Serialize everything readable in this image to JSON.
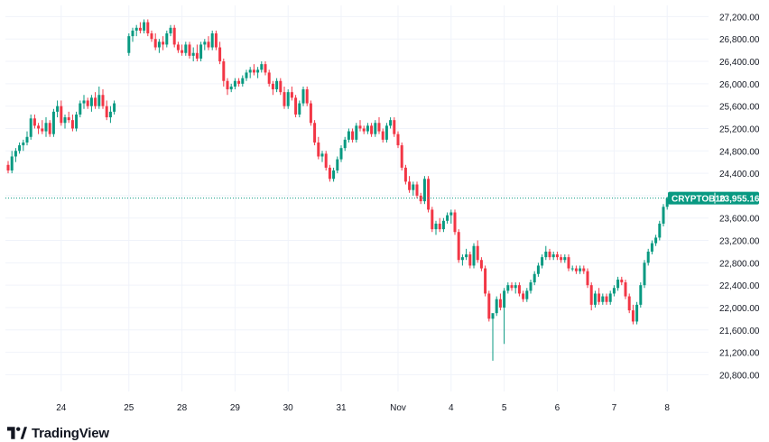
{
  "brand": {
    "name": "TradingView"
  },
  "colors": {
    "up": "#089981",
    "down": "#f23645",
    "grid": "#f0f3fa",
    "axis_text": "#131722",
    "last_line": "#089981",
    "tag_bg": "#089981"
  },
  "chart_data": {
    "type": "candlestick",
    "symbol": "CRYPTOB10",
    "last_price": 23955.16,
    "last_price_label": "23,955.16",
    "y_range": [
      20500,
      27400
    ],
    "y_ticks": [
      20800,
      21200,
      21600,
      22000,
      22400,
      22800,
      23200,
      23600,
      24000,
      24400,
      24800,
      25200,
      25600,
      26000,
      26400,
      26800,
      27200
    ],
    "y_tick_labels": [
      "20,800.00",
      "21,200.00",
      "21,600.00",
      "22,000.00",
      "22,400.00",
      "22,800.00",
      "23,200.00",
      "23,600.00",
      "24,000.00",
      "24,400.00",
      "24,800.00",
      "25,200.00",
      "25,600.00",
      "26,000.00",
      "26,400.00",
      "26,800.00",
      "27,200.00"
    ],
    "x_ticks": [
      "24",
      "25",
      "28",
      "29",
      "30",
      "31",
      "Nov",
      "4",
      "5",
      "6",
      "7",
      "8"
    ],
    "grid": true,
    "series": [
      {
        "values": [
          [
            24550,
            24620,
            24400,
            24450
          ],
          [
            24450,
            24800,
            24400,
            24700
          ],
          [
            24700,
            24850,
            24600,
            24800
          ],
          [
            24800,
            24950,
            24750,
            24900
          ],
          [
            24900,
            25000,
            24800,
            24950
          ],
          [
            24950,
            25150,
            24900,
            25050
          ],
          [
            25050,
            25450,
            25000,
            25380
          ],
          [
            25380,
            25450,
            25200,
            25250
          ],
          [
            25250,
            25300,
            25100,
            25200
          ],
          [
            25200,
            25350,
            25100,
            25150
          ],
          [
            25150,
            25400,
            25050,
            25300
          ],
          [
            25300,
            25350,
            25050,
            25100
          ],
          [
            25100,
            25550,
            25050,
            25500
          ],
          [
            25500,
            25700,
            25400,
            25600
          ],
          [
            25600,
            25700,
            25250,
            25300
          ],
          [
            25300,
            25450,
            25200,
            25400
          ],
          [
            25400,
            25500,
            25300,
            25350
          ],
          [
            25350,
            25450,
            25150,
            25200
          ],
          [
            25200,
            25500,
            25150,
            25450
          ],
          [
            25450,
            25700,
            25400,
            25650
          ],
          [
            25650,
            25800,
            25550,
            25700
          ],
          [
            25700,
            25750,
            25550,
            25600
          ],
          [
            25600,
            25800,
            25500,
            25750
          ],
          [
            25750,
            25850,
            25550,
            25600
          ],
          [
            25600,
            25950,
            25550,
            25800
          ],
          [
            25800,
            25900,
            25550,
            25600
          ],
          [
            25600,
            25700,
            25350,
            25400
          ],
          [
            25400,
            25600,
            25300,
            25500
          ],
          [
            25500,
            25700,
            25450,
            25650
          ],
          [
            26550,
            26900,
            26500,
            26850
          ],
          [
            26850,
            27000,
            26750,
            26950
          ],
          [
            26950,
            27050,
            26850,
            27000
          ],
          [
            27000,
            27100,
            26900,
            26950
          ],
          [
            26950,
            27150,
            26900,
            27100
          ],
          [
            27100,
            27150,
            26850,
            26900
          ],
          [
            26900,
            26950,
            26750,
            26800
          ],
          [
            26800,
            26900,
            26600,
            26650
          ],
          [
            26650,
            26800,
            26550,
            26750
          ],
          [
            26750,
            26850,
            26600,
            26700
          ],
          [
            26700,
            26950,
            26650,
            26900
          ],
          [
            26900,
            27050,
            26850,
            27000
          ],
          [
            27000,
            27050,
            26650,
            26700
          ],
          [
            26700,
            26750,
            26550,
            26600
          ],
          [
            26600,
            26700,
            26500,
            26550
          ],
          [
            26550,
            26750,
            26500,
            26700
          ],
          [
            26700,
            26750,
            26450,
            26500
          ],
          [
            26500,
            26650,
            26400,
            26550
          ],
          [
            26550,
            26700,
            26400,
            26450
          ],
          [
            26450,
            26750,
            26400,
            26700
          ],
          [
            26700,
            26800,
            26600,
            26750
          ],
          [
            26750,
            26850,
            26600,
            26650
          ],
          [
            26650,
            26950,
            26600,
            26900
          ],
          [
            26900,
            26950,
            26600,
            26650
          ],
          [
            26650,
            26750,
            26350,
            26400
          ],
          [
            26400,
            26450,
            25950,
            26050
          ],
          [
            26050,
            26100,
            25800,
            25900
          ],
          [
            25900,
            26000,
            25850,
            25950
          ],
          [
            25950,
            26100,
            25900,
            26050
          ],
          [
            26050,
            26100,
            25950,
            26000
          ],
          [
            26000,
            26150,
            25950,
            26100
          ],
          [
            26100,
            26250,
            26050,
            26200
          ],
          [
            26200,
            26300,
            26100,
            26250
          ],
          [
            26250,
            26350,
            26150,
            26200
          ],
          [
            26200,
            26300,
            26100,
            26250
          ],
          [
            26250,
            26400,
            26200,
            26350
          ],
          [
            26350,
            26400,
            26150,
            26200
          ],
          [
            26200,
            26250,
            25950,
            26000
          ],
          [
            26000,
            26050,
            25800,
            25900
          ],
          [
            25900,
            26100,
            25850,
            26050
          ],
          [
            26050,
            26100,
            25800,
            25850
          ],
          [
            25850,
            25950,
            25550,
            25600
          ],
          [
            25600,
            25900,
            25550,
            25850
          ],
          [
            25850,
            25950,
            25700,
            25750
          ],
          [
            25750,
            25800,
            25400,
            25450
          ],
          [
            25450,
            25700,
            25400,
            25650
          ],
          [
            25650,
            25950,
            25600,
            25900
          ],
          [
            25900,
            25950,
            25600,
            25650
          ],
          [
            25650,
            25700,
            25250,
            25300
          ],
          [
            25300,
            25350,
            24900,
            24950
          ],
          [
            24950,
            25050,
            24650,
            24700
          ],
          [
            24700,
            24800,
            24600,
            24750
          ],
          [
            24750,
            24800,
            24450,
            24500
          ],
          [
            24500,
            24550,
            24250,
            24300
          ],
          [
            24300,
            24500,
            24250,
            24450
          ],
          [
            24450,
            24700,
            24400,
            24650
          ],
          [
            24650,
            24900,
            24600,
            24850
          ],
          [
            24850,
            25050,
            24800,
            25000
          ],
          [
            25000,
            25200,
            24950,
            25150
          ],
          [
            25150,
            25200,
            24950,
            25000
          ],
          [
            25000,
            25300,
            24950,
            25250
          ],
          [
            25250,
            25350,
            25150,
            25200
          ],
          [
            25200,
            25250,
            25100,
            25150
          ],
          [
            25150,
            25300,
            25100,
            25250
          ],
          [
            25250,
            25300,
            25050,
            25100
          ],
          [
            25100,
            25350,
            25050,
            25300
          ],
          [
            25300,
            25400,
            25100,
            25150
          ],
          [
            25150,
            25200,
            24950,
            25000
          ],
          [
            25000,
            25300,
            24950,
            25250
          ],
          [
            25250,
            25400,
            25200,
            25350
          ],
          [
            25350,
            25400,
            25050,
            25100
          ],
          [
            25100,
            25150,
            24850,
            24900
          ],
          [
            24900,
            24950,
            24450,
            24500
          ],
          [
            24500,
            24550,
            24200,
            24250
          ],
          [
            24250,
            24350,
            24050,
            24100
          ],
          [
            24100,
            24250,
            24000,
            24200
          ],
          [
            24200,
            24250,
            23950,
            24000
          ],
          [
            24000,
            24050,
            23850,
            23900
          ],
          [
            23900,
            24350,
            23850,
            24300
          ],
          [
            24300,
            24350,
            23700,
            23750
          ],
          [
            23750,
            23800,
            23350,
            23400
          ],
          [
            23400,
            23550,
            23300,
            23500
          ],
          [
            23500,
            23600,
            23350,
            23400
          ],
          [
            23400,
            23600,
            23350,
            23550
          ],
          [
            23550,
            23700,
            23500,
            23650
          ],
          [
            23650,
            23750,
            23500,
            23700
          ],
          [
            23700,
            23750,
            23300,
            23350
          ],
          [
            23350,
            23400,
            22800,
            22850
          ],
          [
            22850,
            22950,
            22750,
            22900
          ],
          [
            22900,
            23050,
            22850,
            22950
          ],
          [
            22950,
            23000,
            22700,
            22750
          ],
          [
            22750,
            23150,
            22700,
            23100
          ],
          [
            23100,
            23200,
            22800,
            22850
          ],
          [
            22850,
            22900,
            22650,
            22700
          ],
          [
            22700,
            22750,
            22200,
            22250
          ],
          [
            22250,
            22300,
            21750,
            21800
          ],
          [
            21800,
            21850,
            21050,
            21900
          ],
          [
            21900,
            22200,
            21850,
            22150
          ],
          [
            22150,
            22250,
            21950,
            22000
          ],
          [
            22000,
            22350,
            21350,
            22300
          ],
          [
            22300,
            22450,
            22250,
            22400
          ],
          [
            22400,
            22450,
            22300,
            22350
          ],
          [
            22350,
            22450,
            22250,
            22400
          ],
          [
            22400,
            22450,
            22200,
            22250
          ],
          [
            22250,
            22300,
            22100,
            22150
          ],
          [
            22150,
            22350,
            22100,
            22300
          ],
          [
            22300,
            22500,
            22250,
            22450
          ],
          [
            22450,
            22650,
            22400,
            22600
          ],
          [
            22600,
            22800,
            22550,
            22750
          ],
          [
            22750,
            22950,
            22700,
            22900
          ],
          [
            22900,
            23100,
            22850,
            23000
          ],
          [
            23000,
            23050,
            22850,
            22900
          ],
          [
            22900,
            23000,
            22850,
            22950
          ],
          [
            22950,
            23000,
            22850,
            22900
          ],
          [
            22900,
            22950,
            22800,
            22850
          ],
          [
            22850,
            22950,
            22800,
            22900
          ],
          [
            22900,
            22950,
            22650,
            22700
          ],
          [
            22700,
            22750,
            22650,
            22700
          ],
          [
            22700,
            22750,
            22600,
            22650
          ],
          [
            22650,
            22750,
            22600,
            22700
          ],
          [
            22700,
            22750,
            22600,
            22650
          ],
          [
            22650,
            22700,
            22350,
            22400
          ],
          [
            22400,
            22450,
            21950,
            22050
          ],
          [
            22050,
            22300,
            22000,
            22250
          ],
          [
            22250,
            22350,
            22050,
            22100
          ],
          [
            22100,
            22250,
            22050,
            22200
          ],
          [
            22200,
            22250,
            22050,
            22100
          ],
          [
            22100,
            22300,
            22050,
            22250
          ],
          [
            22250,
            22400,
            22200,
            22350
          ],
          [
            22350,
            22550,
            22300,
            22500
          ],
          [
            22500,
            22550,
            22400,
            22450
          ],
          [
            22450,
            22500,
            22150,
            22200
          ],
          [
            22200,
            22250,
            21900,
            21950
          ],
          [
            21950,
            22050,
            21700,
            21750
          ],
          [
            21750,
            22100,
            21700,
            22050
          ],
          [
            22050,
            22450,
            22000,
            22400
          ],
          [
            22400,
            22850,
            22350,
            22800
          ],
          [
            22800,
            23050,
            22750,
            23000
          ],
          [
            23000,
            23200,
            22950,
            23150
          ],
          [
            23150,
            23300,
            23100,
            23250
          ],
          [
            23250,
            23550,
            23200,
            23500
          ],
          [
            23500,
            23850,
            23450,
            23800
          ],
          [
            23800,
            23980,
            23750,
            23955
          ]
        ]
      }
    ]
  }
}
